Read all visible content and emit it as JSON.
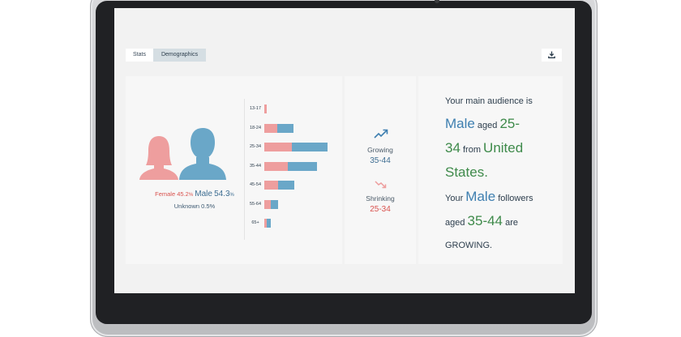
{
  "tabs": [
    {
      "label": "Stats",
      "active": false
    },
    {
      "label": "Demographics",
      "active": true
    }
  ],
  "download": {
    "icon": "download-icon"
  },
  "gender": {
    "female_label": "Female",
    "female_pct": "45.2",
    "male_label": "Male",
    "male_pct": "54.3",
    "pct_sign": "%",
    "unknown": "Unknown 0.5%",
    "female_color": "#ee9e9e",
    "male_color": "#6aa7c8"
  },
  "age_groups": [
    {
      "label": "13-17",
      "female": 2,
      "male": 0
    },
    {
      "label": "18-24",
      "female": 12,
      "male": 15
    },
    {
      "label": "25-34",
      "female": 26,
      "male": 33
    },
    {
      "label": "35-44",
      "female": 22,
      "male": 27
    },
    {
      "label": "45-54",
      "female": 13,
      "male": 15
    },
    {
      "label": "55-64",
      "female": 6,
      "male": 7
    },
    {
      "label": "65+",
      "female": 2,
      "male": 4
    }
  ],
  "trends": {
    "growing_label": "Growing",
    "growing_range": "35-44",
    "shrinking_label": "Shrinking",
    "shrinking_range": "25-34",
    "growing_color": "#3e7fb0",
    "shrinking_color": "#d9534f"
  },
  "summary": {
    "line1": "Your main audience is",
    "gender": "Male",
    "aged": " aged ",
    "age_a": "25-",
    "age_b": "34",
    "from": " from ",
    "country_a": "United",
    "country_b": "States.",
    "your": "Your ",
    "followers_gender": "Male",
    "followers": " followers",
    "aged2": "aged ",
    "growing_age": "35-44",
    "are": " are",
    "growing_word": "GROWING."
  }
}
